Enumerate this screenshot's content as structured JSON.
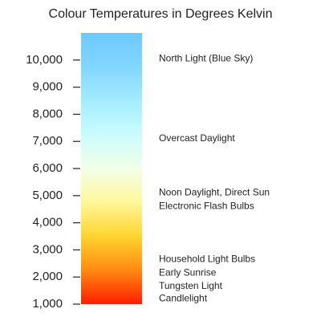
{
  "chart_data": {
    "type": "gradient-scale",
    "title": "Colour Temperatures in Degrees Kelvin",
    "ylim": [
      1000,
      11000
    ],
    "yticks": [
      {
        "value": 1000,
        "label": "1,000"
      },
      {
        "value": 2000,
        "label": "2,000"
      },
      {
        "value": 3000,
        "label": "3,000"
      },
      {
        "value": 4000,
        "label": "4,000"
      },
      {
        "value": 5000,
        "label": "5,000"
      },
      {
        "value": 6000,
        "label": "6,000"
      },
      {
        "value": 7000,
        "label": "7,000"
      },
      {
        "value": 8000,
        "label": "8,000"
      },
      {
        "value": 9000,
        "label": "9,000"
      },
      {
        "value": 10000,
        "label": "10,000"
      }
    ],
    "colors": [
      "#ff1e00",
      "#ff8a12",
      "#ffd42e",
      "#fff79a",
      "#f2ffe8",
      "#cbfbff",
      "#a3ecff",
      "#82d6ff",
      "#6ec8ff"
    ],
    "annotations": [
      {
        "label": "North Light (Blue Sky)",
        "value": 10050
      },
      {
        "label": "Overcast Daylight",
        "value": 7100
      },
      {
        "label": "Noon Daylight, Direct Sun",
        "value": 5100
      },
      {
        "label": "Electronic Flash Bulbs",
        "value": 4600
      },
      {
        "label": "Household Light Bulbs",
        "value": 2650
      },
      {
        "label": "Early Sunrise",
        "value": 2150
      },
      {
        "label": "Tungsten Light",
        "value": 1650
      },
      {
        "label": "Candlelight",
        "value": 1200
      }
    ]
  }
}
